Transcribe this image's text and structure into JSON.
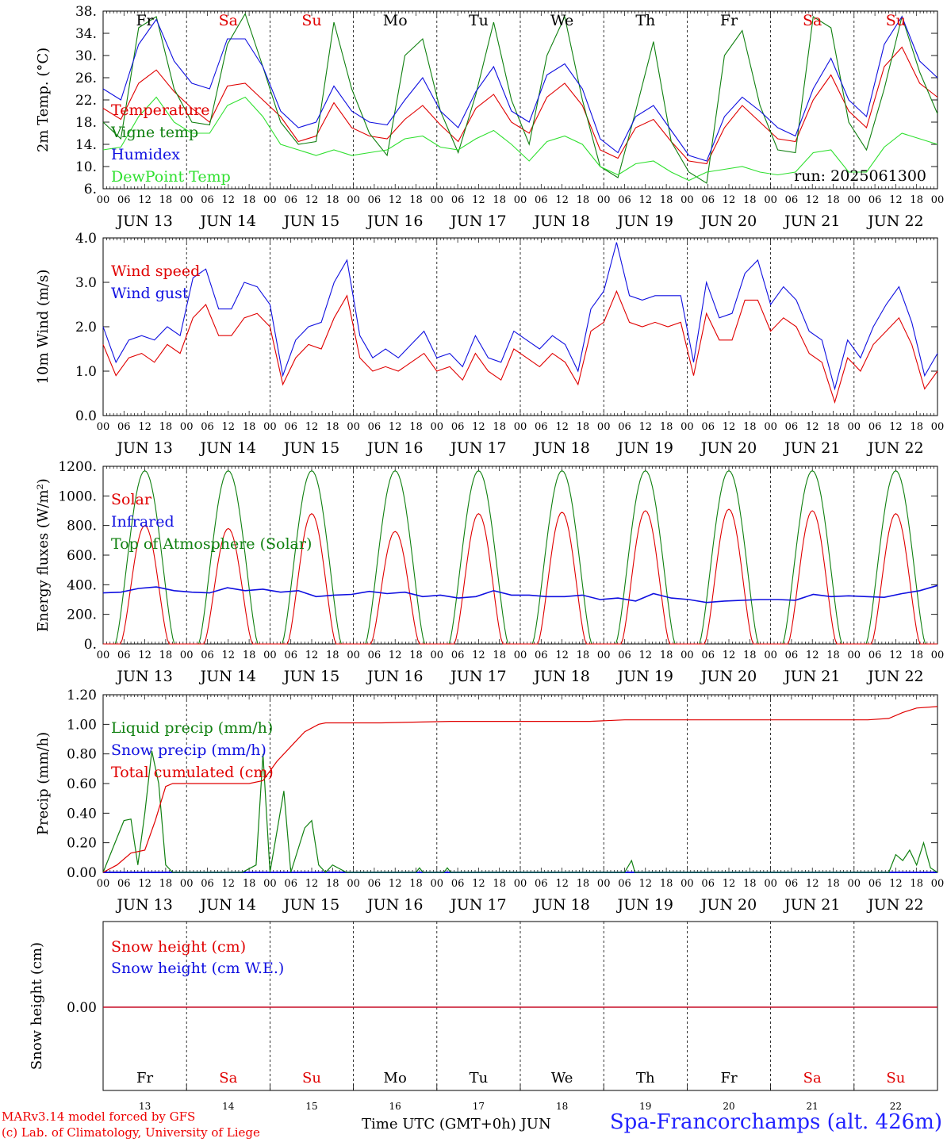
{
  "chart_data": [
    {
      "type": "line",
      "ylabel": "2m Temp. (°C)",
      "ylim": [
        6,
        38
      ],
      "yticks": [
        "6.",
        "10.",
        "14.",
        "18.",
        "22.",
        "26.",
        "30.",
        "34.",
        "38."
      ],
      "run_label": "run: 2025061300",
      "days_of_week": [
        "Fr",
        "Sa",
        "Su",
        "Mo",
        "Tu",
        "We",
        "Th",
        "Fr",
        "Sa",
        "Su"
      ],
      "weekend_color": "#e00000",
      "series": [
        {
          "name": "Temperature",
          "color": "#e00000",
          "values": [
            20.5,
            18.5,
            25,
            27.4,
            23.5,
            20.5,
            18,
            24.5,
            25,
            22,
            19,
            14.5,
            15.5,
            21.5,
            17,
            15.5,
            15,
            18.5,
            21,
            17.5,
            14.5,
            20.5,
            23,
            18,
            16,
            22.5,
            25,
            21,
            13,
            11.5,
            17,
            18.5,
            14.5,
            11,
            10.5,
            17,
            21,
            18,
            15,
            14.5,
            22,
            26.5,
            20,
            17,
            28,
            31.5,
            25,
            22.5
          ]
        },
        {
          "name": "Vigne temp",
          "color": "#108010",
          "values": [
            18,
            15,
            35,
            37,
            24,
            18,
            17.5,
            32,
            37.5,
            28,
            18,
            14,
            14.5,
            36,
            24,
            16,
            12,
            30,
            33,
            20,
            12.5,
            23,
            36,
            22,
            14,
            30,
            37,
            22,
            10,
            8,
            20,
            32.5,
            14.5,
            9,
            7,
            30,
            34.5,
            21,
            13,
            12.5,
            37,
            35,
            18,
            13,
            24,
            37,
            27,
            19.5
          ]
        },
        {
          "name": "Humidex",
          "color": "#1010e0",
          "values": [
            24,
            22,
            32,
            36.5,
            29,
            25,
            24,
            33,
            33,
            28,
            20,
            17,
            18,
            24.5,
            20,
            18,
            17.5,
            22,
            26,
            20,
            17,
            23.5,
            28,
            20,
            18,
            26.5,
            28.5,
            24,
            15,
            12.5,
            19,
            21,
            16.5,
            12,
            11,
            19,
            22.5,
            20,
            17,
            15.5,
            24,
            29.5,
            22,
            19,
            32,
            37,
            29,
            26
          ]
        },
        {
          "name": "DewPoint Temp",
          "color": "#30e030",
          "values": [
            13,
            13.5,
            19,
            22.5,
            18,
            16,
            16,
            21,
            22.5,
            19,
            14,
            13,
            12,
            13,
            12,
            12.5,
            13,
            15,
            15.5,
            13.5,
            13,
            15,
            16.5,
            14,
            11,
            14.5,
            15.5,
            14,
            10,
            8.5,
            10.5,
            11,
            9,
            7.5,
            9,
            9.5,
            10,
            9,
            8.5,
            9,
            12.5,
            13,
            9,
            9,
            13.5,
            16,
            15,
            14
          ]
        }
      ]
    },
    {
      "type": "line",
      "ylabel": "10m Wind (m/s)",
      "ylim": [
        0,
        4
      ],
      "yticks": [
        "0.0",
        "1.0",
        "2.0",
        "3.0",
        "4.0"
      ],
      "series": [
        {
          "name": "Wind speed",
          "color": "#e00000",
          "values": [
            1.6,
            0.9,
            1.3,
            1.4,
            1.2,
            1.6,
            1.4,
            2.2,
            2.5,
            1.8,
            1.8,
            2.2,
            2.3,
            2.0,
            0.7,
            1.3,
            1.6,
            1.5,
            2.2,
            2.7,
            1.3,
            1.0,
            1.1,
            1.0,
            1.2,
            1.4,
            1.0,
            1.1,
            0.8,
            1.4,
            1.0,
            0.8,
            1.5,
            1.3,
            1.1,
            1.4,
            1.2,
            0.7,
            1.9,
            2.1,
            2.8,
            2.1,
            2.0,
            2.1,
            2.0,
            2.1,
            0.9,
            2.3,
            1.7,
            1.7,
            2.6,
            2.6,
            1.9,
            2.2,
            2.0,
            1.4,
            1.2,
            0.3,
            1.3,
            1.0,
            1.6,
            1.9,
            2.2,
            1.6,
            0.6,
            1.0
          ]
        },
        {
          "name": "Wind gust",
          "color": "#1010e0",
          "values": [
            2.0,
            1.2,
            1.7,
            1.8,
            1.7,
            2.0,
            1.8,
            3.1,
            3.3,
            2.4,
            2.4,
            3.0,
            2.9,
            2.5,
            0.9,
            1.7,
            2.0,
            2.1,
            3.0,
            3.5,
            1.8,
            1.3,
            1.5,
            1.3,
            1.6,
            1.9,
            1.3,
            1.4,
            1.1,
            1.8,
            1.3,
            1.2,
            1.9,
            1.7,
            1.5,
            1.8,
            1.6,
            1.0,
            2.4,
            2.8,
            3.9,
            2.7,
            2.6,
            2.7,
            2.7,
            2.7,
            1.2,
            3.0,
            2.2,
            2.3,
            3.2,
            3.5,
            2.5,
            2.9,
            2.6,
            1.9,
            1.7,
            0.6,
            1.7,
            1.3,
            2.0,
            2.5,
            2.9,
            2.1,
            0.9,
            1.4
          ]
        }
      ]
    },
    {
      "type": "line",
      "ylabel": "Energy fluxes (W/m²)",
      "ylim": [
        0,
        1200
      ],
      "yticks": [
        "0.",
        "200.",
        "400.",
        "600.",
        "800.",
        "1000.",
        "1200."
      ],
      "solar_peaks": [
        800,
        780,
        880,
        760,
        880,
        890,
        900,
        910,
        900,
        880
      ],
      "toa_peak": 1170,
      "series": [
        {
          "name": "Solar",
          "color": "#e00000"
        },
        {
          "name": "Infrared",
          "color": "#1010e0",
          "values": [
            345,
            350,
            375,
            385,
            360,
            350,
            345,
            380,
            360,
            370,
            350,
            360,
            320,
            330,
            335,
            355,
            340,
            350,
            320,
            330,
            310,
            320,
            360,
            330,
            330,
            320,
            320,
            330,
            300,
            310,
            290,
            340,
            310,
            300,
            280,
            290,
            295,
            300,
            300,
            295,
            335,
            320,
            325,
            320,
            315,
            340,
            360,
            395
          ]
        },
        {
          "name": "Top of Atmosphere (Solar)",
          "color": "#108010"
        }
      ]
    },
    {
      "type": "line",
      "ylabel": "Precip (mm/h)",
      "ylim": [
        0,
        1.2
      ],
      "yticks": [
        "0.00",
        "0.20",
        "0.40",
        "0.60",
        "0.80",
        "1.00",
        "1.20"
      ],
      "series": [
        {
          "name": "Liquid precip (mm/h)",
          "color": "#108010",
          "points": [
            [
              0,
              0
            ],
            [
              6,
              0.35
            ],
            [
              8,
              0.36
            ],
            [
              10,
              0.05
            ],
            [
              12,
              0.4
            ],
            [
              14,
              0.82
            ],
            [
              16,
              0.6
            ],
            [
              18,
              0.05
            ],
            [
              20,
              0
            ],
            [
              40,
              0
            ],
            [
              44,
              0.05
            ],
            [
              46,
              0.8
            ],
            [
              48,
              0
            ],
            [
              52,
              0.55
            ],
            [
              54,
              0
            ],
            [
              58,
              0.3
            ],
            [
              60,
              0.35
            ],
            [
              62,
              0.05
            ],
            [
              64,
              0
            ],
            [
              66,
              0.05
            ],
            [
              70,
              0
            ],
            [
              90,
              0
            ],
            [
              91,
              0.03
            ],
            [
              92,
              0
            ],
            [
              98,
              0
            ],
            [
              99,
              0.03
            ],
            [
              100,
              0
            ],
            [
              150,
              0
            ],
            [
              152,
              0.08
            ],
            [
              153,
              0
            ],
            [
              226,
              0
            ],
            [
              228,
              0.12
            ],
            [
              230,
              0.08
            ],
            [
              232,
              0.15
            ],
            [
              234,
              0.05
            ],
            [
              236,
              0.2
            ],
            [
              238,
              0.03
            ],
            [
              240,
              0
            ]
          ]
        },
        {
          "name": "Snow precip (mm/h)",
          "color": "#1010e0",
          "points": [
            [
              0,
              0
            ],
            [
              240,
              0
            ]
          ]
        },
        {
          "name": "Total cumulated (cm)",
          "color": "#e00000",
          "points": [
            [
              0,
              0
            ],
            [
              4,
              0.05
            ],
            [
              8,
              0.13
            ],
            [
              12,
              0.15
            ],
            [
              15,
              0.35
            ],
            [
              18,
              0.58
            ],
            [
              20,
              0.6
            ],
            [
              42,
              0.6
            ],
            [
              46,
              0.62
            ],
            [
              50,
              0.75
            ],
            [
              54,
              0.85
            ],
            [
              58,
              0.95
            ],
            [
              62,
              1.0
            ],
            [
              64,
              1.01
            ],
            [
              80,
              1.01
            ],
            [
              100,
              1.02
            ],
            [
              140,
              1.02
            ],
            [
              150,
              1.03
            ],
            [
              220,
              1.03
            ],
            [
              226,
              1.04
            ],
            [
              230,
              1.08
            ],
            [
              234,
              1.11
            ],
            [
              240,
              1.12
            ]
          ]
        }
      ]
    },
    {
      "type": "line",
      "ylabel": "Snow height (cm)",
      "ytick": "0.00",
      "series": [
        {
          "name": "Snow height (cm)",
          "color": "#e00000",
          "values": [
            0,
            0
          ]
        },
        {
          "name": "Snow height (cm W.E.)",
          "color": "#1010e0",
          "values": [
            0,
            0
          ]
        }
      ],
      "day_numbers": [
        "13",
        "14",
        "15",
        "16",
        "17",
        "18",
        "19",
        "20",
        "21",
        "22"
      ]
    }
  ],
  "hour_labels": [
    "00",
    "06",
    "12",
    "18"
  ],
  "final_hour_label": "00",
  "dates": [
    "JUN 13",
    "JUN 14",
    "JUN 15",
    "JUN 16",
    "JUN 17",
    "JUN 18",
    "JUN 19",
    "JUN 20",
    "JUN 21",
    "JUN 22"
  ],
  "footer": {
    "credit_line1": "MARv3.14 model forced by GFS",
    "credit_line2": "(c) Lab. of Climatology, University of Liege",
    "x_title": "Time UTC (GMT+0h) JUN",
    "site": "Spa-Francorchamps (alt. 426m)"
  }
}
